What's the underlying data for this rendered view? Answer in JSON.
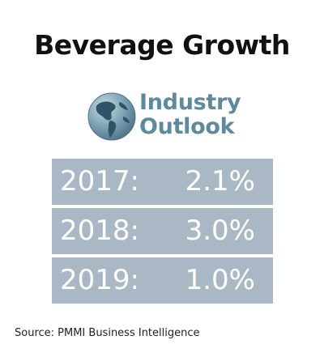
{
  "title": "Beverage Growth",
  "outlook": {
    "line1": "Industry",
    "line2": "Outlook",
    "icon": "globe-icon"
  },
  "stats": [
    {
      "year": "2017:",
      "value": "2.1%"
    },
    {
      "year": "2018:",
      "value": "3.0%"
    },
    {
      "year": "2019:",
      "value": "1.0%"
    }
  ],
  "source": "Source: PMMI Business Intelligence",
  "colors": {
    "accent": "#5f8a9e",
    "row_background": "#a9b8c4",
    "text": "#111111"
  }
}
